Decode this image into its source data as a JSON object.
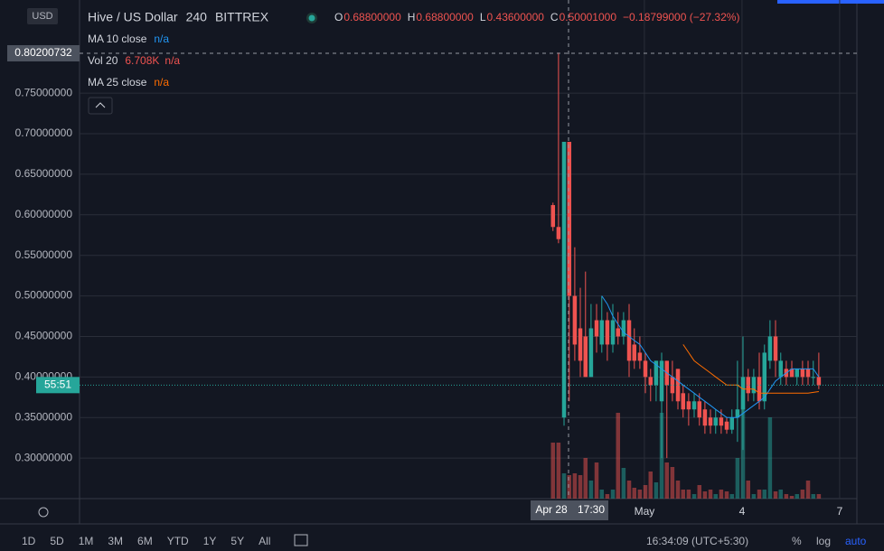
{
  "header": {
    "symbol": "Hive / US Dollar",
    "interval": "240",
    "exchange": "BITTREX",
    "ohlc": [
      {
        "key": "O",
        "value": "0.68800000"
      },
      {
        "key": "H",
        "value": "0.68800000"
      },
      {
        "key": "L",
        "value": "0.43600000"
      },
      {
        "key": "C",
        "value": "0.50001000"
      }
    ],
    "change": "−0.18799000 (−27.32%)"
  },
  "chart_data": {
    "type": "candlestick",
    "x": [
      -1.81,
      -1.64,
      -1.47,
      -1.31,
      -1.14,
      -0.97,
      -0.81,
      -0.64,
      -0.47,
      -0.31,
      -0.14,
      0.03,
      0.19,
      0.36,
      0.53,
      0.69,
      0.86,
      1.03,
      1.19,
      1.36,
      1.53,
      1.69,
      1.86,
      2.03,
      2.19,
      2.36,
      2.53,
      2.69,
      2.86,
      3.03,
      3.19,
      3.36,
      3.53,
      3.69,
      3.86,
      4.03,
      4.19,
      4.36,
      4.53,
      4.69,
      4.86,
      5.03,
      5.19,
      5.36,
      5.53,
      5.69,
      5.86,
      6.03,
      6.19,
      6.36
    ],
    "open": [
      0.612,
      0.585,
      0.35,
      0.69,
      0.5,
      0.46,
      0.45,
      0.4,
      0.47,
      0.44,
      0.47,
      0.44,
      0.46,
      0.45,
      0.47,
      0.44,
      0.43,
      0.42,
      0.4,
      0.39,
      0.37,
      0.42,
      0.4,
      0.41,
      0.38,
      0.37,
      0.36,
      0.37,
      0.36,
      0.35,
      0.34,
      0.35,
      0.345,
      0.335,
      0.35,
      0.36,
      0.4,
      0.38,
      0.4,
      0.37,
      0.42,
      0.45,
      0.4,
      0.41,
      0.41,
      0.4,
      0.41,
      0.41,
      0.4,
      0.4
    ],
    "high": [
      0.615,
      0.8,
      0.69,
      0.69,
      0.56,
      0.51,
      0.53,
      0.49,
      0.49,
      0.5,
      0.48,
      0.49,
      0.48,
      0.48,
      0.49,
      0.46,
      0.45,
      0.43,
      0.41,
      0.42,
      0.43,
      0.42,
      0.42,
      0.41,
      0.39,
      0.38,
      0.38,
      0.38,
      0.37,
      0.36,
      0.36,
      0.36,
      0.35,
      0.36,
      0.42,
      0.45,
      0.41,
      0.41,
      0.43,
      0.44,
      0.47,
      0.47,
      0.43,
      0.42,
      0.42,
      0.41,
      0.42,
      0.42,
      0.42,
      0.43
    ],
    "low": [
      0.58,
      0.565,
      0.34,
      0.37,
      0.42,
      0.4,
      0.4,
      0.4,
      0.43,
      0.43,
      0.42,
      0.43,
      0.44,
      0.44,
      0.4,
      0.41,
      0.41,
      0.38,
      0.37,
      0.37,
      0.3,
      0.3,
      0.37,
      0.36,
      0.35,
      0.34,
      0.35,
      0.34,
      0.33,
      0.33,
      0.33,
      0.33,
      0.33,
      0.33,
      0.32,
      0.31,
      0.37,
      0.37,
      0.36,
      0.36,
      0.41,
      0.4,
      0.39,
      0.39,
      0.4,
      0.39,
      0.39,
      0.39,
      0.39,
      0.385
    ],
    "close": [
      0.585,
      0.57,
      0.69,
      0.5,
      0.44,
      0.42,
      0.4,
      0.46,
      0.45,
      0.47,
      0.44,
      0.47,
      0.45,
      0.47,
      0.42,
      0.42,
      0.42,
      0.4,
      0.39,
      0.42,
      0.42,
      0.39,
      0.38,
      0.37,
      0.36,
      0.36,
      0.37,
      0.35,
      0.34,
      0.34,
      0.35,
      0.34,
      0.335,
      0.35,
      0.36,
      0.4,
      0.38,
      0.4,
      0.37,
      0.43,
      0.45,
      0.42,
      0.42,
      0.4,
      0.4,
      0.41,
      0.4,
      0.4,
      0.4,
      0.39
    ],
    "up_color": "#26a69a",
    "down_color": "#ef5350",
    "xlim": [
      -16.36,
      7.53
    ],
    "xticks": [
      {
        "value": 1,
        "label": "May"
      },
      4,
      7
    ],
    "ylim": [
      0.25,
      0.856
    ],
    "yticks": [
      {
        "value": 0.3,
        "label": "0.30000000"
      },
      {
        "value": 0.35,
        "label": "0.35000000"
      },
      {
        "value": 0.4,
        "label": "0.40000000"
      },
      {
        "value": 0.45,
        "label": "0.45000000"
      },
      {
        "value": 0.5,
        "label": "0.50000000"
      },
      {
        "value": 0.55,
        "label": "0.55000000"
      },
      {
        "value": 0.6,
        "label": "0.60000000"
      },
      {
        "value": 0.65,
        "label": "0.65000000"
      },
      {
        "value": 0.7,
        "label": "0.70000000"
      },
      {
        "value": 0.75,
        "label": "0.75000000"
      }
    ],
    "grid": true,
    "currency": "USD",
    "volume": {
      "name": "Vol 20",
      "value_label": "6.708K",
      "status": "n/a",
      "values": [
        62,
        62,
        28,
        26,
        28,
        26,
        45,
        20,
        40,
        10,
        5,
        10,
        95,
        34,
        20,
        12,
        10,
        15,
        30,
        18,
        95,
        40,
        35,
        20,
        10,
        10,
        5,
        15,
        8,
        10,
        5,
        10,
        8,
        5,
        45,
        115,
        20,
        5,
        10,
        10,
        90,
        8,
        10,
        5,
        3,
        5,
        10,
        20,
        5,
        5
      ]
    },
    "series": [
      {
        "name": "MA 10 close",
        "status": "n/a",
        "color": "#2196f3",
        "values": [
          null,
          null,
          null,
          null,
          null,
          null,
          null,
          null,
          null,
          0.5,
          0.49,
          0.475,
          0.465,
          0.455,
          0.45,
          0.445,
          0.44,
          0.43,
          0.42,
          0.415,
          0.41,
          0.405,
          0.4,
          0.395,
          0.39,
          0.385,
          0.38,
          0.375,
          0.37,
          0.365,
          0.36,
          0.355,
          0.35,
          0.35,
          0.35,
          0.355,
          0.36,
          0.365,
          0.37,
          0.375,
          0.385,
          0.395,
          0.4,
          0.405,
          0.41,
          0.41,
          0.41,
          0.41,
          0.41,
          0.4
        ]
      },
      {
        "name": "MA 25 close",
        "status": "n/a",
        "color": "#ff6d00",
        "values": [
          null,
          null,
          null,
          null,
          null,
          null,
          null,
          null,
          null,
          null,
          null,
          null,
          null,
          null,
          null,
          null,
          null,
          null,
          null,
          null,
          null,
          null,
          null,
          null,
          0.44,
          0.43,
          0.42,
          0.415,
          0.41,
          0.405,
          0.4,
          0.395,
          0.39,
          0.39,
          0.39,
          0.385,
          0.385,
          0.385,
          0.38,
          0.38,
          0.38,
          0.38,
          0.38,
          0.38,
          0.38,
          0.38,
          0.38,
          0.38,
          0.381,
          0.382
        ]
      }
    ],
    "crosshair": {
      "price": "0.80200732",
      "date": "Apr 28",
      "time": "17:30"
    },
    "countdown": "55:51"
  },
  "toolbar": {
    "ranges": [
      "1D",
      "5D",
      "1M",
      "3M",
      "6M",
      "YTD",
      "1Y",
      "5Y",
      "All"
    ],
    "time": "16:34:09 (UTC+5:30)",
    "options": [
      "%",
      "log",
      "auto"
    ]
  }
}
